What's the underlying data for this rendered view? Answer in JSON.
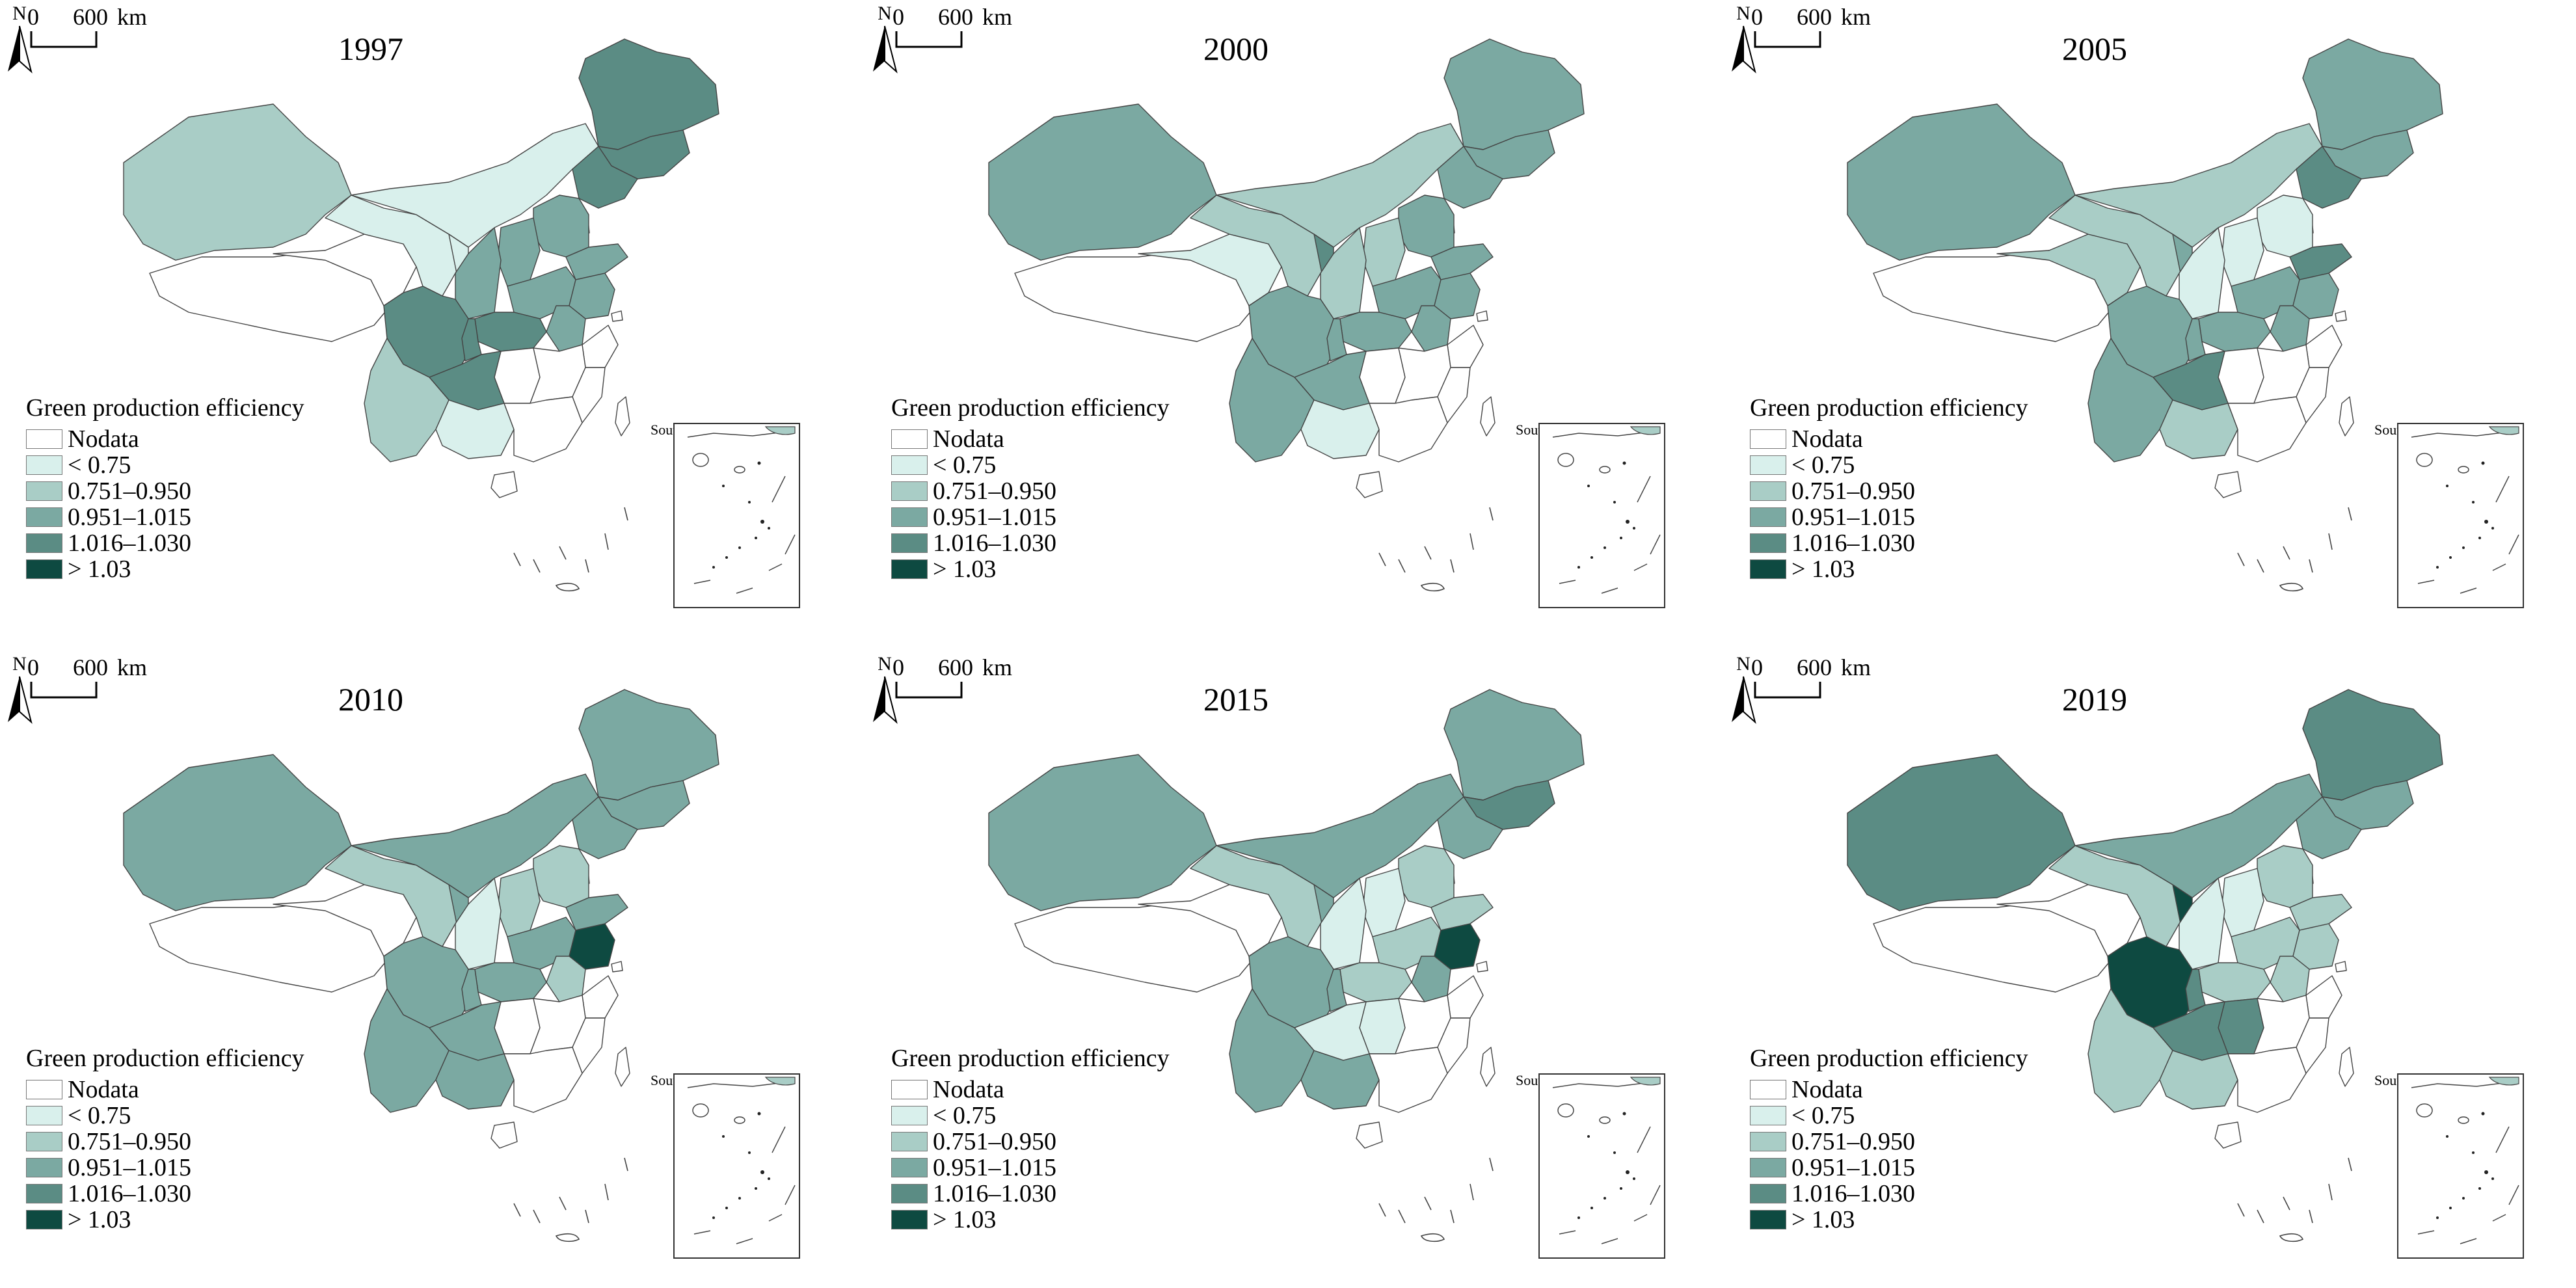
{
  "legend": {
    "title": "Green production efficiency",
    "classes": [
      {
        "label": "Nodata",
        "color": "#ffffff"
      },
      {
        "label": "< 0.75",
        "color": "#d9f0ec"
      },
      {
        "label": "0.751–0.950",
        "color": "#a9cdc6"
      },
      {
        "label": "0.951–1.015",
        "color": "#7ba9a2"
      },
      {
        "label": "1.016–1.030",
        "color": "#5b8c84"
      },
      {
        "label": "> 1.03",
        "color": "#0e4a41"
      }
    ]
  },
  "north_label": "N",
  "scale_bar": {
    "start": "0",
    "end": "600",
    "unit": "km"
  },
  "inset_label": "South China Sea Islands",
  "maps": [
    {
      "year": "1997",
      "classes": {
        "xinjiang": 2,
        "tibet": 0,
        "qinghai": 0,
        "gansu": 1,
        "inner_mongolia": 1,
        "heilongjiang": 4,
        "jilin": 4,
        "liaoning": 4,
        "ningxia": 1,
        "shaanxi": 3,
        "shanxi": 3,
        "hebei": 3,
        "beijing": 3,
        "tianjin": 3,
        "shandong": 3,
        "henan": 3,
        "sichuan": 4,
        "chongqing": 4,
        "hubei": 4,
        "anhui": 3,
        "jiangsu": 3,
        "shanghai": 0,
        "zhejiang": 0,
        "jiangxi": 0,
        "hunan": 0,
        "guizhou": 4,
        "yunnan": 2,
        "guangxi": 1,
        "guangdong": 0,
        "fujian": 0,
        "hainan": 0,
        "taiwan": 0
      }
    },
    {
      "year": "2000",
      "classes": {
        "xinjiang": 3,
        "tibet": 0,
        "qinghai": 1,
        "gansu": 2,
        "inner_mongolia": 2,
        "heilongjiang": 3,
        "jilin": 3,
        "liaoning": 3,
        "ningxia": 4,
        "shaanxi": 2,
        "shanxi": 2,
        "hebei": 3,
        "beijing": 0,
        "tianjin": 0,
        "shandong": 3,
        "henan": 3,
        "sichuan": 3,
        "chongqing": 3,
        "hubei": 3,
        "anhui": 3,
        "jiangsu": 3,
        "shanghai": 0,
        "zhejiang": 0,
        "jiangxi": 0,
        "hunan": 0,
        "guizhou": 3,
        "yunnan": 3,
        "guangxi": 1,
        "guangdong": 0,
        "fujian": 0,
        "hainan": 0,
        "taiwan": 0
      }
    },
    {
      "year": "2005",
      "classes": {
        "xinjiang": 3,
        "tibet": 0,
        "qinghai": 2,
        "gansu": 2,
        "inner_mongolia": 2,
        "heilongjiang": 3,
        "jilin": 3,
        "liaoning": 4,
        "ningxia": 3,
        "shaanxi": 1,
        "shanxi": 1,
        "hebei": 1,
        "beijing": 0,
        "tianjin": 0,
        "shandong": 4,
        "henan": 3,
        "sichuan": 3,
        "chongqing": 3,
        "hubei": 3,
        "anhui": 3,
        "jiangsu": 3,
        "shanghai": 0,
        "zhejiang": 0,
        "jiangxi": 0,
        "hunan": 0,
        "guizhou": 4,
        "yunnan": 3,
        "guangxi": 2,
        "guangdong": 0,
        "fujian": 0,
        "hainan": 0,
        "taiwan": 0
      }
    },
    {
      "year": "2010",
      "classes": {
        "xinjiang": 3,
        "tibet": 0,
        "qinghai": 0,
        "gansu": 2,
        "inner_mongolia": 3,
        "heilongjiang": 3,
        "jilin": 3,
        "liaoning": 3,
        "ningxia": 3,
        "shaanxi": 1,
        "shanxi": 2,
        "hebei": 2,
        "beijing": 0,
        "tianjin": 0,
        "shandong": 3,
        "henan": 3,
        "sichuan": 3,
        "chongqing": 3,
        "hubei": 3,
        "anhui": 2,
        "jiangsu": 5,
        "shanghai": 0,
        "zhejiang": 0,
        "jiangxi": 0,
        "hunan": 0,
        "guizhou": 3,
        "yunnan": 3,
        "guangxi": 3,
        "guangdong": 0,
        "fujian": 0,
        "hainan": 0,
        "taiwan": 0
      }
    },
    {
      "year": "2015",
      "classes": {
        "xinjiang": 3,
        "tibet": 0,
        "qinghai": 0,
        "gansu": 2,
        "inner_mongolia": 3,
        "heilongjiang": 3,
        "jilin": 4,
        "liaoning": 3,
        "ningxia": 3,
        "shaanxi": 1,
        "shanxi": 1,
        "hebei": 2,
        "beijing": 0,
        "tianjin": 0,
        "shandong": 2,
        "henan": 2,
        "sichuan": 3,
        "chongqing": 3,
        "hubei": 2,
        "anhui": 3,
        "jiangsu": 5,
        "shanghai": 0,
        "zhejiang": 0,
        "jiangxi": 0,
        "hunan": 1,
        "guizhou": 1,
        "yunnan": 3,
        "guangxi": 3,
        "guangdong": 0,
        "fujian": 0,
        "hainan": 0,
        "taiwan": 0
      }
    },
    {
      "year": "2019",
      "classes": {
        "xinjiang": 4,
        "tibet": 0,
        "qinghai": 0,
        "gansu": 2,
        "inner_mongolia": 3,
        "heilongjiang": 4,
        "jilin": 3,
        "liaoning": 3,
        "ningxia": 5,
        "shaanxi": 1,
        "shanxi": 1,
        "hebei": 2,
        "beijing": 0,
        "tianjin": 0,
        "shandong": 2,
        "henan": 2,
        "sichuan": 5,
        "chongqing": 4,
        "hubei": 2,
        "anhui": 2,
        "jiangsu": 2,
        "shanghai": 0,
        "zhejiang": 0,
        "jiangxi": 0,
        "hunan": 4,
        "guizhou": 4,
        "yunnan": 2,
        "guangxi": 2,
        "guangdong": 0,
        "fujian": 0,
        "hainan": 0,
        "taiwan": 0
      }
    }
  ]
}
